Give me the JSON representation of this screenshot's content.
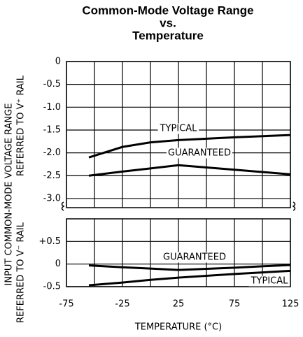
{
  "title": [
    "Common-Mode Voltage Range",
    "vs.",
    "Temperature"
  ],
  "ylabel": "INPUT COMMON-MODE VOLTAGE RANGE",
  "xlabel": "TEMPERATURE (°C)",
  "chart_data": [
    {
      "type": "line",
      "ylabel": "REFERRED TO V⁺ RAIL",
      "xlim": [
        -75,
        125
      ],
      "xticks": [
        -75,
        -25,
        25,
        75,
        125
      ],
      "ylim": [
        -3.2,
        0
      ],
      "yticks": [
        0,
        -0.5,
        {
          "value": -1,
          "label": "-1.0"
        },
        -1.5,
        {
          "value": -2,
          "label": "-2.0"
        },
        -2.5,
        {
          "value": -3,
          "label": "-3.0"
        }
      ],
      "grid": true,
      "x": [
        -55,
        -25,
        0,
        25,
        75,
        125
      ],
      "series": [
        {
          "name": "TYPICAL",
          "color": "#000000",
          "values": [
            -2.1,
            -1.87,
            -1.77,
            -1.72,
            -1.66,
            -1.61
          ]
        },
        {
          "name": "GUARANTEED",
          "color": "#000000",
          "values": [
            -2.5,
            -2.41,
            -2.34,
            -2.27,
            -2.37,
            -2.47
          ]
        }
      ]
    },
    {
      "type": "line",
      "ylabel": "REFERRED TO V⁻ RAIL",
      "xlim": [
        -75,
        125
      ],
      "xticks": [
        -75,
        -25,
        25,
        75,
        125
      ],
      "ylim": [
        -0.5,
        1
      ],
      "yticks": [
        {
          "value": 0.5,
          "label": "+0.5"
        },
        0,
        -0.5
      ],
      "grid": true,
      "x": [
        -55,
        -25,
        0,
        25,
        75,
        125
      ],
      "series": [
        {
          "name": "GUARANTEED",
          "color": "#000000",
          "values": [
            -0.03,
            -0.07,
            -0.1,
            -0.13,
            -0.08,
            -0.02
          ]
        },
        {
          "name": "TYPICAL",
          "color": "#000000",
          "values": [
            -0.47,
            -0.41,
            -0.35,
            -0.3,
            -0.22,
            -0.15
          ]
        }
      ]
    }
  ]
}
